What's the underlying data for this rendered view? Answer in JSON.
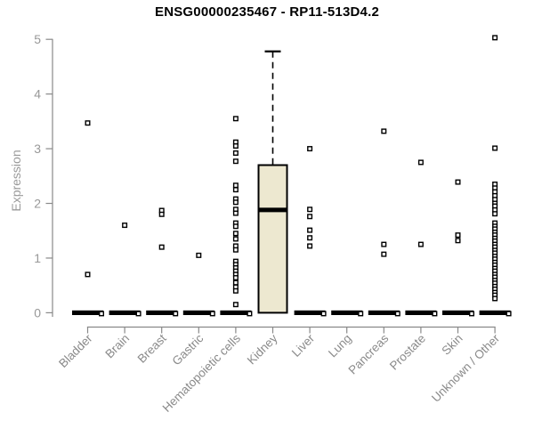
{
  "chart_data": {
    "type": "box",
    "title": "ENSG00000235467 - RP11-513D4.2",
    "ylabel": "Expression",
    "xlabel": "",
    "ylim": [
      0,
      5
    ],
    "yticks": [
      0,
      1,
      2,
      3,
      4,
      5
    ],
    "grid": false,
    "legend": "none",
    "categories": [
      "Bladder",
      "Brain",
      "Breast",
      "Gastric",
      "Hematopoietic cells",
      "Kidney",
      "Liver",
      "Lung",
      "Pancreas",
      "Prostate",
      "Skin",
      "Unknown / Other"
    ],
    "boxes": [
      {
        "label": "Bladder",
        "min": 0,
        "q1": 0,
        "median": 0,
        "q3": 0,
        "max": 0,
        "outliers": [
          3.47,
          0.7,
          0
        ]
      },
      {
        "label": "Brain",
        "min": 0,
        "q1": 0,
        "median": 0,
        "q3": 0,
        "max": 0,
        "outliers": [
          1.6,
          0
        ]
      },
      {
        "label": "Breast",
        "min": 0,
        "q1": 0,
        "median": 0,
        "q3": 0,
        "max": 0,
        "outliers": [
          1.87,
          1.8,
          1.2,
          0
        ]
      },
      {
        "label": "Gastric",
        "min": 0,
        "q1": 0,
        "median": 0,
        "q3": 0,
        "max": 0,
        "outliers": [
          1.05,
          0
        ]
      },
      {
        "label": "Hematopoietic cells",
        "min": 0,
        "q1": 0,
        "median": 0,
        "q3": 0,
        "max": 0,
        "outliers": [
          3.55,
          3.12,
          3.05,
          2.92,
          2.77,
          2.33,
          2.25,
          2.08,
          2.02,
          1.89,
          1.82,
          1.64,
          1.58,
          1.45,
          1.35,
          1.22,
          1.15,
          0.94,
          0.88,
          0.82,
          0.76,
          0.7,
          0.64,
          0.55,
          0.47,
          0.4,
          0.15,
          0
        ]
      },
      {
        "label": "Kidney",
        "min": 0,
        "q1": 0,
        "median": 1.88,
        "q3": 2.7,
        "max": 4.78,
        "outliers": []
      },
      {
        "label": "Liver",
        "min": 0,
        "q1": 0,
        "median": 0,
        "q3": 0,
        "max": 0,
        "outliers": [
          3.0,
          1.89,
          1.76,
          1.51,
          1.37,
          1.22,
          0
        ]
      },
      {
        "label": "Lung",
        "min": 0,
        "q1": 0,
        "median": 0,
        "q3": 0,
        "max": 0,
        "outliers": [
          0
        ]
      },
      {
        "label": "Pancreas",
        "min": 0,
        "q1": 0,
        "median": 0,
        "q3": 0,
        "max": 0,
        "outliers": [
          3.32,
          1.25,
          1.07,
          0
        ]
      },
      {
        "label": "Prostate",
        "min": 0,
        "q1": 0,
        "median": 0,
        "q3": 0,
        "max": 0,
        "outliers": [
          2.75,
          1.25,
          0
        ]
      },
      {
        "label": "Skin",
        "min": 0,
        "q1": 0,
        "median": 0,
        "q3": 0,
        "max": 0,
        "outliers": [
          2.39,
          1.42,
          1.32,
          0
        ]
      },
      {
        "label": "Unknown / Other",
        "min": 0,
        "q1": 0,
        "median": 0,
        "q3": 0,
        "max": 0,
        "outliers": [
          5.03,
          3.01,
          2.35,
          2.28,
          2.21,
          2.14,
          2.07,
          2.0,
          1.95,
          1.88,
          1.81,
          1.64,
          1.58,
          1.53,
          1.47,
          1.42,
          1.36,
          1.31,
          1.25,
          1.2,
          1.14,
          1.09,
          1.03,
          0.98,
          0.92,
          0.87,
          0.81,
          0.76,
          0.7,
          0.65,
          0.59,
          0.54,
          0.48,
          0.43,
          0.37,
          0.32,
          0.26,
          0
        ]
      }
    ],
    "colors": {
      "box_fill": "#EDE8D0",
      "box_stroke": "#000000",
      "median": "#000000",
      "zero_bar": "#000000",
      "point_stroke": "#000000",
      "axis": "#898989",
      "tick_label": "#989898",
      "category_label": "#8a8a8a",
      "title": "#000000",
      "background": "#ffffff"
    }
  }
}
